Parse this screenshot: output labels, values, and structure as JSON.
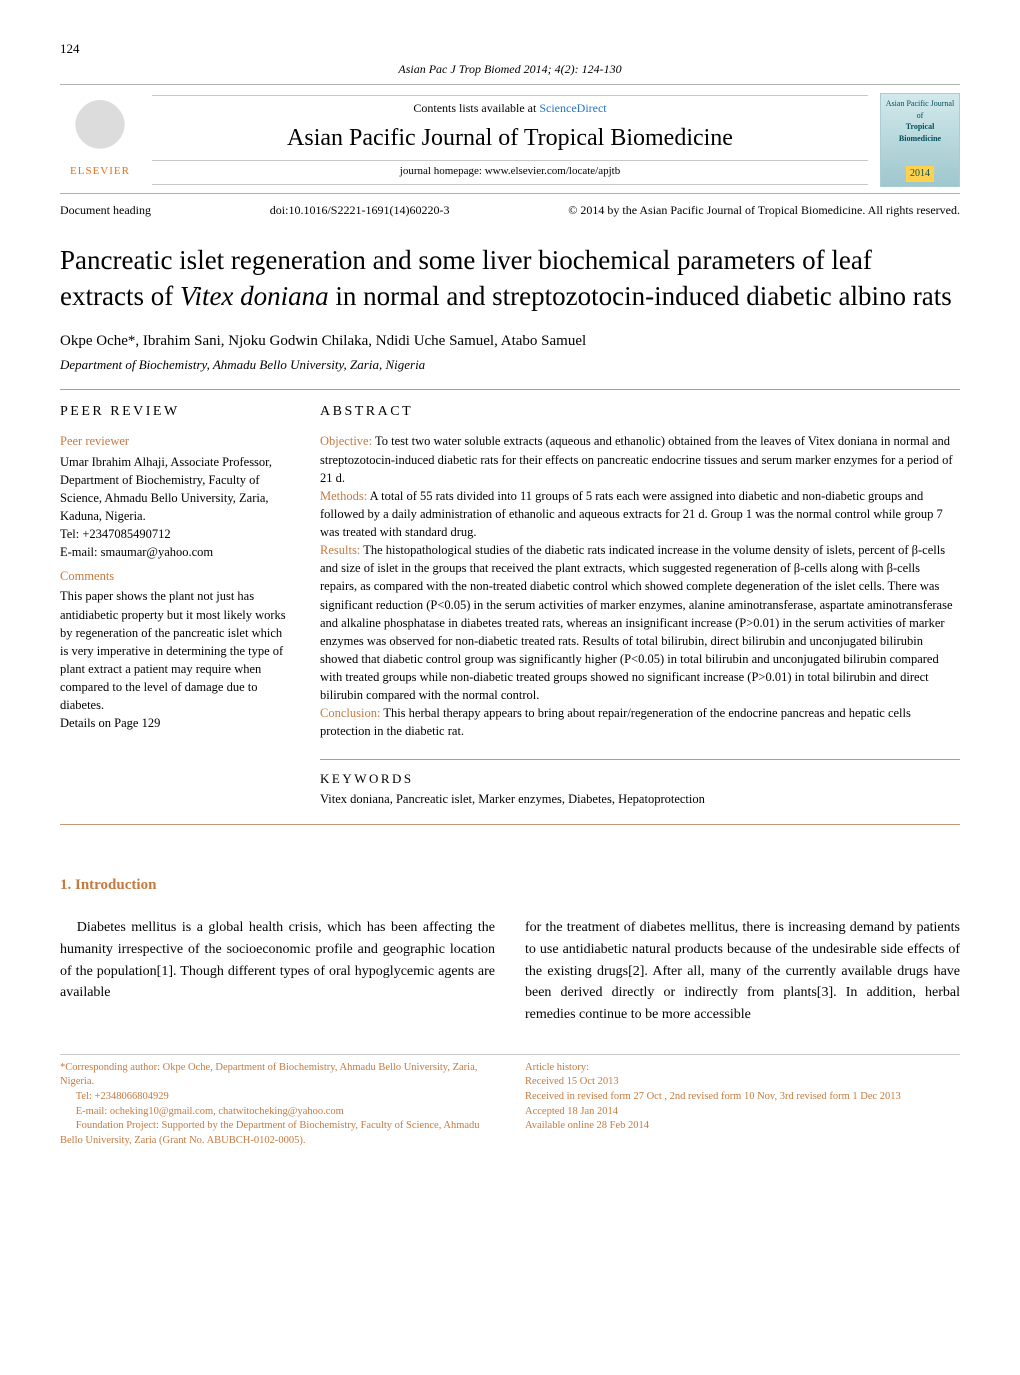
{
  "page_number": "124",
  "journal_ref": "Asian Pac J Trop Biomed 2014; 4(2): 124-130",
  "header": {
    "contents_prefix": "Contents lists available at ",
    "contents_link": "ScienceDirect",
    "journal_title": "Asian Pacific Journal of Tropical Biomedicine",
    "homepage": "journal homepage: www.elsevier.com/locate/apjtb",
    "elsevier_text": "ELSEVIER",
    "cover_text_top": "Asian Pacific Journal of",
    "cover_text_mid": "Tropical Biomedicine",
    "cover_year": "2014"
  },
  "doc_row": {
    "left": "Document heading",
    "doi": "doi:10.1016/S2221-1691(14)60220-3",
    "copyright": "© 2014 by the Asian Pacific Journal of Tropical Biomedicine. All rights reserved."
  },
  "title_plain_1": "Pancreatic islet regeneration and some liver biochemical parameters of leaf extracts of ",
  "title_ital": "Vitex doniana",
  "title_plain_2": " in normal and streptozotocin-induced diabetic albino rats",
  "authors": "Okpe Oche*, Ibrahim Sani, Njoku Godwin Chilaka, Ndidi Uche Samuel, Atabo Samuel",
  "affiliation": "Department of Biochemistry, Ahmadu Bello University, Zaria, Nigeria",
  "peer": {
    "head": "PEER REVIEW",
    "reviewer_head": "Peer reviewer",
    "reviewer_body": "Umar Ibrahim Alhaji, Associate Professor, Department of Biochemistry, Faculty of Science, Ahmadu Bello University, Zaria, Kaduna, Nigeria.",
    "reviewer_tel": "Tel: +2347085490712",
    "reviewer_email": "E-mail: smaumar@yahoo.com",
    "comments_head": "Comments",
    "comments_body": "This paper shows the plant not just has antidiabetic property but it most likely works by regeneration of the pancreatic islet which is very imperative in determining the type of plant extract a patient may require when compared to the level of damage due to diabetes.",
    "details": "Details on Page 129"
  },
  "abstract": {
    "head": "ABSTRACT",
    "objective_label": "Objective:",
    "objective": " To test two water soluble extracts (aqueous and ethanolic) obtained from the leaves of Vitex doniana in normal and streptozotocin-induced diabetic rats for their effects on pancreatic endocrine tissues and serum marker enzymes for a period of 21 d.",
    "methods_label": "Methods:",
    "methods": " A total of 55 rats divided into 11 groups of 5 rats each were assigned into diabetic and non-diabetic groups and followed by a daily administration of ethanolic and aqueous extracts for 21 d. Group 1 was the normal control while group 7 was treated with standard drug.",
    "results_label": "Results:",
    "results": " The histopathological studies of the diabetic rats indicated increase in the volume density of islets, percent of β-cells and size of islet in the groups that received the plant extracts, which suggested regeneration of β-cells along with β-cells repairs, as compared with the non-treated diabetic control which showed complete degeneration of the islet cells. There was significant reduction (P<0.05) in the serum activities of marker enzymes, alanine aminotransferase, aspartate aminotransferase and alkaline phosphatase in diabetes treated rats, whereas an insignificant increase (P>0.01) in the serum activities of marker enzymes was observed for non-diabetic treated rats. Results of total bilirubin, direct bilirubin and unconjugated bilirubin showed that diabetic control group was significantly higher (P<0.05) in total bilirubin and unconjugated bilirubin compared with treated groups while non-diabetic treated groups showed no significant increase (P>0.01) in total bilirubin and direct bilirubin compared with the normal control.",
    "conclusion_label": "Conclusion:",
    "conclusion": " This herbal therapy appears to bring about repair/regeneration of the endocrine pancreas and hepatic cells protection in the diabetic rat."
  },
  "keywords": {
    "head": "KEYWORDS",
    "list": "Vitex doniana, Pancreatic islet, Marker enzymes, Diabetes, Hepatoprotection"
  },
  "intro_head": "1. Introduction",
  "intro_left": "Diabetes mellitus is a global health crisis, which has been affecting the humanity irrespective of the socioeconomic profile and geographic location of the population[1]. Though different types of oral hypoglycemic agents are available",
  "intro_right": "for the treatment of diabetes mellitus, there is increasing demand by patients to use antidiabetic natural products because of the undesirable side effects of the existing drugs[2]. After all, many of the currently available drugs have been derived directly or indirectly from plants[3]. In addition, herbal remedies continue to be more accessible",
  "footnotes": {
    "left_1": "*Corresponding author: Okpe Oche, Department of Biochemistry, Ahmadu Bello University, Zaria, Nigeria.",
    "left_2": "Tel: +2348066804929",
    "left_3": "E-mail: ocheking10@gmail.com, chatwitocheking@yahoo.com",
    "left_4": "Foundation Project: Supported by the Department of Biochemistry, Faculty of Science, Ahmadu Bello University, Zaria (Grant No. ABUBCH-0102-0005).",
    "right_1": "Article history:",
    "right_2": "Received 15 Oct 2013",
    "right_3": "Received in revised form 27 Oct , 2nd revised form 10 Nov, 3rd revised form 1 Dec 2013",
    "right_4": "Accepted 18 Jan 2014",
    "right_5": "Available online 28 Feb 2014"
  },
  "colors": {
    "accent": "#c67a3f",
    "rule": "#c0977a",
    "link": "#1e74c6",
    "elsevier": "#e9711c"
  }
}
